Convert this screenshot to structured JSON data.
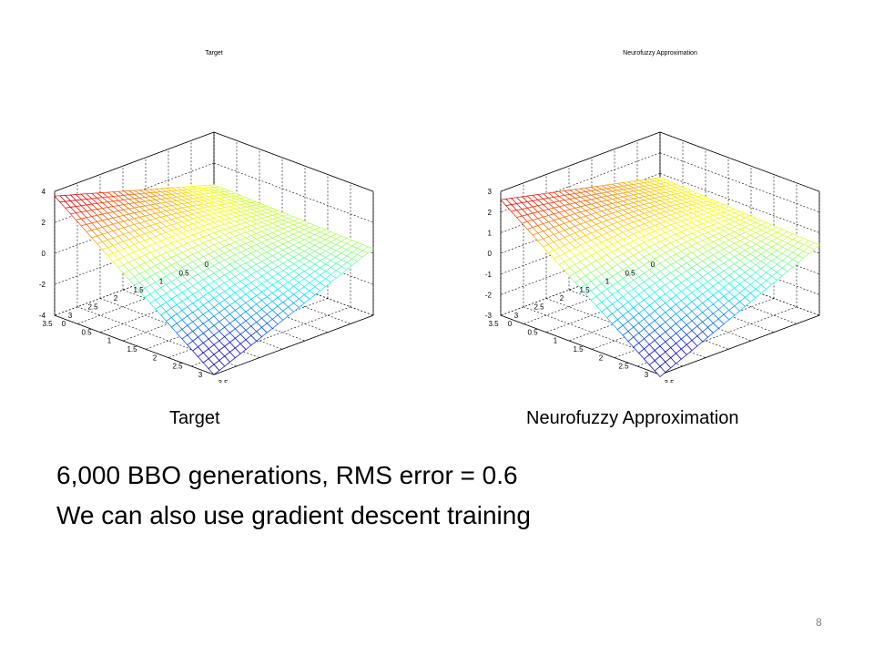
{
  "chart_data": [
    {
      "type": "surface",
      "title": "Target",
      "x_ticks": [
        "0",
        "0.5",
        "1",
        "1.5",
        "2",
        "2.5",
        "3",
        "3.5"
      ],
      "y_ticks": [
        "0",
        "0.5",
        "1",
        "1.5",
        "2",
        "2.5",
        "3",
        "3.5"
      ],
      "z_ticks": [
        "-4",
        "-2",
        "0",
        "2",
        "4"
      ],
      "xlim": [
        0,
        3.5
      ],
      "ylim": [
        0,
        3.5
      ],
      "zlim": [
        -4,
        4
      ],
      "grid": true,
      "colormap": "jet",
      "corner_values": {
        "x0_y0": 0.6,
        "x0_y3.5": 3.7,
        "x3.5_y0": 0.3,
        "x3.5_y3.5": -4.0
      },
      "max_value": 4.0,
      "min_value": -4.0
    },
    {
      "type": "surface",
      "title": "Neurofuzzy Approximation",
      "x_ticks": [
        "0",
        "0.5",
        "1",
        "1.5",
        "2",
        "2.5",
        "3",
        "3.5"
      ],
      "y_ticks": [
        "0",
        "0.5",
        "1",
        "1.5",
        "2",
        "2.5",
        "3",
        "3.5"
      ],
      "z_ticks": [
        "-3",
        "-2",
        "-1",
        "0",
        "1",
        "2",
        "3"
      ],
      "xlim": [
        0,
        3.5
      ],
      "ylim": [
        0,
        3.5
      ],
      "zlim": [
        -3,
        3
      ],
      "grid": true,
      "colormap": "jet",
      "corner_values": {
        "x0_y0": 0.8,
        "x0_y3.5": 2.6,
        "x3.5_y0": 0.4,
        "x3.5_y3.5": -3.1
      },
      "max_value": 3.0,
      "min_value": -3.1
    }
  ],
  "captions": {
    "left": "Target",
    "right": "Neurofuzzy Approximation"
  },
  "body": {
    "line1": "6,000 BBO generations, RMS error = 0.6",
    "line2": "We can also use gradient descent training"
  },
  "page_number": "8"
}
